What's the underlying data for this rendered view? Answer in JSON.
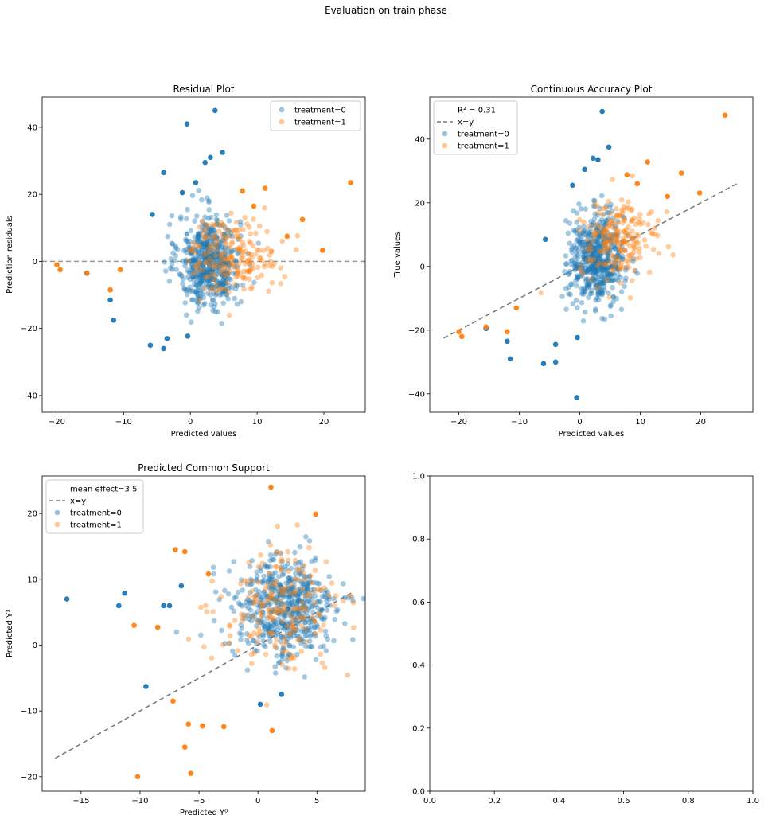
{
  "figure": {
    "suptitle": "Evaluation on train phase"
  },
  "chart_data": [
    {
      "type": "scatter",
      "title": "Residual Plot",
      "xlabel": "Predicted values",
      "ylabel": "Prediction residuals",
      "xlim": [
        -22.2,
        26.2
      ],
      "ylim": [
        -45,
        49
      ],
      "xticks": [
        -20,
        -10,
        0,
        10,
        20
      ],
      "yticks": [
        -40,
        -20,
        0,
        20,
        40
      ],
      "legend_position": "upper right",
      "reference_line": {
        "type": "horizontal",
        "y": 0,
        "style": "dashed"
      },
      "legend": [
        "treatment=0",
        "treatment=1"
      ],
      "series": [
        {
          "name": "treatment=0",
          "color": "#1f77b4",
          "center": [
            2.8,
            0.0
          ],
          "spread": [
            2.3,
            7.0
          ],
          "n": 550,
          "points": [
            [
              3.7,
              45
            ],
            [
              -4,
              26.5
            ],
            [
              2.2,
              29.5
            ],
            [
              3,
              31
            ],
            [
              4.8,
              32.5
            ],
            [
              -0.5,
              41
            ],
            [
              -11.5,
              -17.5
            ],
            [
              -0.4,
              -22.3
            ],
            [
              -4,
              -26
            ],
            [
              -6,
              -25
            ],
            [
              -3.5,
              -23
            ],
            [
              -15.5,
              -3.5
            ],
            [
              -12,
              -11.5
            ],
            [
              -5.7,
              14
            ],
            [
              0.8,
              23.5
            ],
            [
              -1.2,
              20.5
            ]
          ]
        },
        {
          "name": "treatment=1",
          "color": "#ff7f0e",
          "center": [
            6.5,
            2.0
          ],
          "spread": [
            3.3,
            5.5
          ],
          "n": 200,
          "points": [
            [
              24,
              23.5
            ],
            [
              16.8,
              12.5
            ],
            [
              19.8,
              3.3
            ],
            [
              7.8,
              21
            ],
            [
              11.2,
              21.8
            ],
            [
              -20,
              -1
            ],
            [
              -19.5,
              -2.5
            ],
            [
              -15.5,
              -3.5
            ],
            [
              -12,
              -8.5
            ],
            [
              -10.5,
              -2.5
            ],
            [
              9.5,
              16.5
            ],
            [
              14.5,
              7.5
            ]
          ]
        }
      ]
    },
    {
      "type": "scatter",
      "title": "Continuous Accuracy Plot",
      "xlabel": "Predicted values",
      "ylabel": "True values",
      "xlim": [
        -24.8,
        28.6
      ],
      "ylim": [
        -45.8,
        53.2
      ],
      "xticks": [
        -20,
        -10,
        0,
        10,
        20
      ],
      "yticks": [
        -40,
        -20,
        0,
        20,
        40
      ],
      "legend_position": "upper left",
      "legend": [
        "$R^2=0.31$",
        "x=y",
        "treatment=0",
        "treatment=1"
      ],
      "legend_title_display": "R² = 0.31",
      "reference_line": {
        "type": "identity",
        "label": "x=y",
        "range": [
          -22.5,
          26
        ],
        "style": "dashed"
      },
      "series": [
        {
          "name": "treatment=0",
          "color": "#1f77b4",
          "center": [
            2.8,
            2.5
          ],
          "spread": [
            2.3,
            7.0
          ],
          "n": 550,
          "points": [
            [
              3.7,
              48.7
            ],
            [
              4.8,
              37.5
            ],
            [
              3,
              33.5
            ],
            [
              2.2,
              34
            ],
            [
              -1.2,
              25.5
            ],
            [
              -0.5,
              -41.2
            ],
            [
              -11.5,
              -29
            ],
            [
              -0.4,
              -22.3
            ],
            [
              -4,
              -30
            ],
            [
              -6,
              -30.5
            ],
            [
              -4,
              -24.5
            ],
            [
              -15.5,
              -19.5
            ],
            [
              -12,
              -23.5
            ],
            [
              -5.7,
              8.5
            ],
            [
              0.8,
              30.5
            ]
          ]
        },
        {
          "name": "treatment=1",
          "color": "#ff7f0e",
          "center": [
            6.5,
            8.5
          ],
          "spread": [
            3.3,
            6.0
          ],
          "n": 200,
          "points": [
            [
              24,
              47.5
            ],
            [
              16.8,
              29.3
            ],
            [
              19.8,
              23.1
            ],
            [
              7.8,
              28.8
            ],
            [
              11.2,
              32.8
            ],
            [
              -20,
              -20.5
            ],
            [
              -19.5,
              -22
            ],
            [
              -15.5,
              -19
            ],
            [
              -12,
              -20.5
            ],
            [
              -10.5,
              -13
            ],
            [
              9.5,
              26
            ],
            [
              14.5,
              22
            ]
          ]
        }
      ]
    },
    {
      "type": "scatter",
      "title": "Predicted Common Support",
      "xlabel": "Predicted Y⁰",
      "ylabel": "Predicted Y¹",
      "xlim": [
        -18.3,
        9.1
      ],
      "ylim": [
        -22.2,
        25.7
      ],
      "xticks": [
        -15,
        -10,
        -5,
        0,
        5
      ],
      "yticks": [
        -20,
        -10,
        0,
        10,
        20
      ],
      "legend_position": "upper left",
      "legend": [
        "mean effect=3.5",
        "x=y",
        "treatment=0",
        "treatment=1"
      ],
      "reference_line": {
        "type": "identity",
        "label": "x=y",
        "range": [
          -17.2,
          8
        ],
        "style": "dashed"
      },
      "series": [
        {
          "name": "treatment=0",
          "color": "#1f77b4",
          "center": [
            2.2,
            5.5
          ],
          "spread": [
            2.2,
            4.0
          ],
          "n": 550,
          "points": [
            [
              -16.2,
              7
            ],
            [
              -11.3,
              7.9
            ],
            [
              -11.8,
              6
            ],
            [
              -9.5,
              -6.3
            ],
            [
              0.2,
              -9
            ],
            [
              -8,
              6
            ],
            [
              -7.5,
              6
            ],
            [
              -6.5,
              9
            ],
            [
              2,
              -7.5
            ]
          ]
        },
        {
          "name": "treatment=1",
          "color": "#ff7f0e",
          "center": [
            2.0,
            5.5
          ],
          "spread": [
            2.6,
            4.5
          ],
          "n": 200,
          "points": [
            [
              1.1,
              24
            ],
            [
              4.9,
              19.9
            ],
            [
              -10.2,
              -20
            ],
            [
              -5.7,
              -19.5
            ],
            [
              -6.2,
              -15.5
            ],
            [
              1.2,
              -13
            ],
            [
              -10.5,
              3
            ],
            [
              -8.5,
              2.7
            ],
            [
              -7,
              14.5
            ],
            [
              -6.2,
              14.2
            ],
            [
              -7.2,
              -8.5
            ],
            [
              -5.9,
              -12
            ],
            [
              -4.7,
              -12.3
            ],
            [
              -2.9,
              -12.4
            ],
            [
              -4.2,
              10.8
            ]
          ]
        }
      ]
    },
    {
      "type": "scatter",
      "title": "",
      "xlabel": "",
      "ylabel": "",
      "xlim": [
        0,
        1
      ],
      "ylim": [
        0,
        1
      ],
      "xticks": [
        0.0,
        0.2,
        0.4,
        0.6,
        0.8,
        1.0
      ],
      "yticks": [
        0.0,
        0.2,
        0.4,
        0.6,
        0.8,
        1.0
      ],
      "tick_format": "0.0",
      "legend": [],
      "series": []
    }
  ]
}
